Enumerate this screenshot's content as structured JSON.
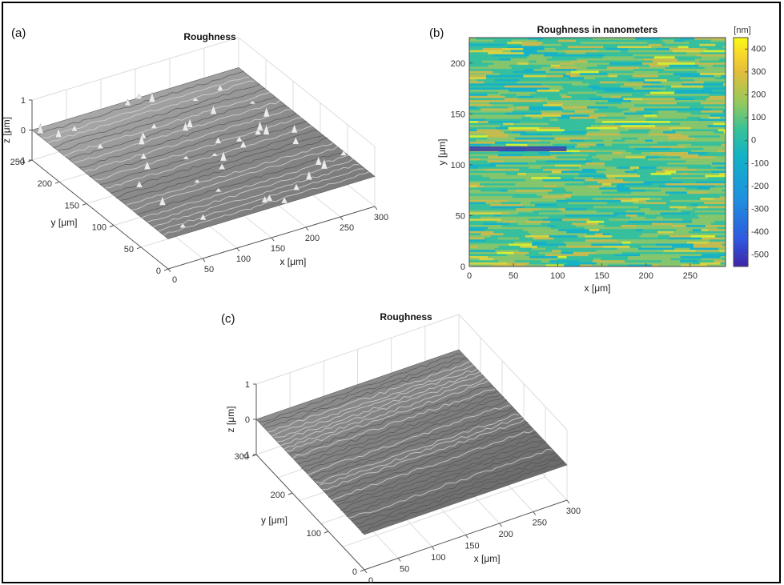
{
  "chart_data": [
    {
      "panel": "(a)",
      "type": "surface",
      "title": "Roughness",
      "xlabel": "x [μm]",
      "ylabel": "y [μm]",
      "zlabel": "z [μm]",
      "xticks": [
        "0",
        "50",
        "100",
        "150",
        "200",
        "250",
        "300"
      ],
      "yticks": [
        "0",
        "50",
        "100",
        "150",
        "200",
        "250"
      ],
      "zticks": [
        "-1",
        "0",
        "1"
      ],
      "xlim": [
        0,
        300
      ],
      "ylim": [
        0,
        250
      ],
      "zlim": [
        -1,
        1
      ],
      "grid": true
    },
    {
      "panel": "(b)",
      "type": "heatmap",
      "title": "Roughness in nanometers",
      "xlabel": "x [μm]",
      "ylabel": "y [μm]",
      "xticks": [
        "0",
        "50",
        "100",
        "150",
        "200",
        "250"
      ],
      "yticks": [
        "0",
        "50",
        "100",
        "150",
        "200"
      ],
      "xlim": [
        0,
        290
      ],
      "ylim": [
        0,
        225
      ],
      "colorbar_label": "[nm]",
      "colorbar_ticks": [
        "400",
        "300",
        "200",
        "100",
        "0",
        "-100",
        "-200",
        "-300",
        "-400",
        "-500"
      ],
      "clim": [
        -550,
        450
      ],
      "colormap": [
        "#3e26a8",
        "#2f59e0",
        "#1e92de",
        "#12b2c8",
        "#38c296",
        "#97c95c",
        "#e3bd3a",
        "#f9d92b",
        "#f9fb15"
      ]
    },
    {
      "panel": "(c)",
      "type": "surface",
      "title": "Roughness",
      "xlabel": "x [μm]",
      "ylabel": "y [μm]",
      "zlabel": "z [μm]",
      "xticks": [
        "0",
        "50",
        "100",
        "150",
        "200",
        "250",
        "300"
      ],
      "yticks": [
        "0",
        "100",
        "200",
        "300"
      ],
      "zticks": [
        "-1",
        "0",
        "1"
      ],
      "xlim": [
        0,
        300
      ],
      "ylim": [
        0,
        300
      ],
      "zlim": [
        -1,
        1
      ],
      "grid": true
    }
  ]
}
